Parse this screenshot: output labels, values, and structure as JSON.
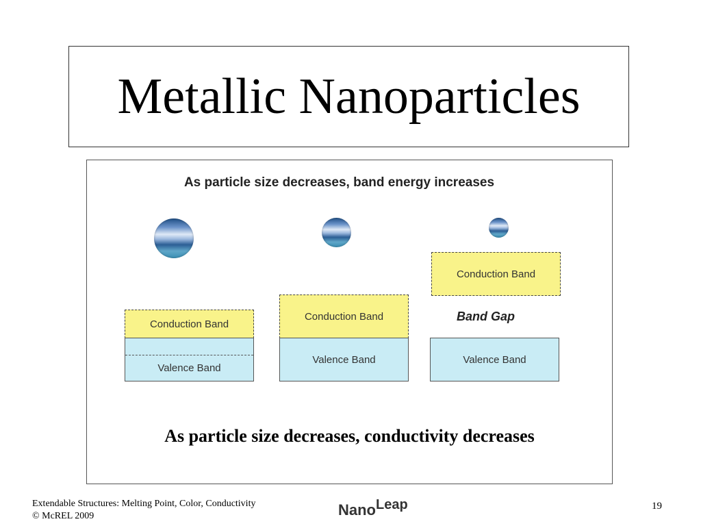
{
  "slide": {
    "title": "Metallic Nanoparticles",
    "figure": {
      "heading": "As particle size decreases, band energy increases",
      "columns": [
        {
          "particle_size": "large",
          "conduction_label": "Conduction Band",
          "valence_label": "Valence Band",
          "band_gap_label": ""
        },
        {
          "particle_size": "medium",
          "conduction_label": "Conduction Band",
          "valence_label": "Valence Band",
          "band_gap_label": ""
        },
        {
          "particle_size": "small",
          "conduction_label": "Conduction Band",
          "valence_label": "Valence Band",
          "band_gap_label": "Band Gap"
        }
      ],
      "caption": "As particle size decreases, conductivity decreases"
    },
    "footer": {
      "line1": "Extendable Structures: Melting Point, Color, Conductivity",
      "line2": "© McREL 2009",
      "logo_part1": "Nano",
      "logo_part2": "Leap",
      "page_number": "19"
    },
    "colors": {
      "conduction_band": "#f9f38a",
      "valence_band": "#c9ecf5"
    }
  }
}
